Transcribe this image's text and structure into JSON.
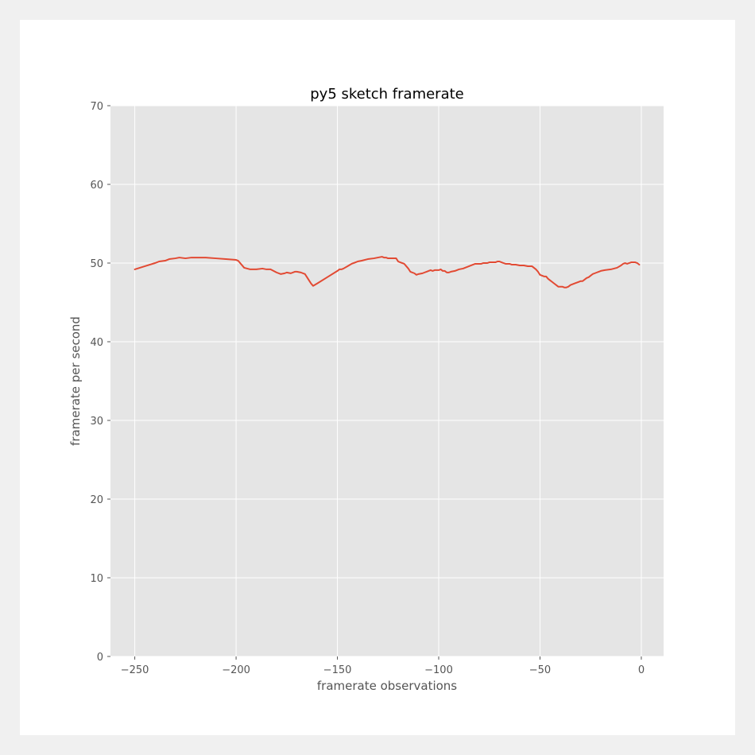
{
  "chart_data": {
    "type": "line",
    "title": "py5 sketch framerate",
    "xlabel": "framerate observations",
    "ylabel": "framerate per second",
    "xlim": [
      -262,
      11
    ],
    "ylim": [
      0,
      70
    ],
    "xticks": [
      -250,
      -200,
      -150,
      -100,
      -50,
      0
    ],
    "yticks": [
      0,
      10,
      20,
      30,
      40,
      50,
      60,
      70
    ],
    "xtick_labels": [
      "−250",
      "−200",
      "−150",
      "−100",
      "−50",
      "0"
    ],
    "ytick_labels": [
      "0",
      "10",
      "20",
      "30",
      "40",
      "50",
      "60",
      "70"
    ],
    "grid": true,
    "colors": {
      "line": "#e24a33",
      "plot_bg": "#e5e5e5",
      "grid": "#ffffff"
    },
    "series": [
      {
        "x": [
          -250,
          -245,
          -240,
          -238,
          -235,
          -233,
          -230,
          -228,
          -225,
          -222,
          -218,
          -215,
          -210,
          -205,
          -200,
          -199,
          -196,
          -193,
          -190,
          -187,
          -185,
          -183,
          -180,
          -178,
          -176,
          -175,
          -173,
          -171,
          -170,
          -168,
          -166,
          -165,
          -164,
          -163,
          -162,
          -160,
          -155,
          -150,
          -149,
          -148,
          -147,
          -145,
          -143,
          -141,
          -140,
          -138,
          -135,
          -132,
          -130,
          -128,
          -127,
          -126,
          -125,
          -123,
          -121,
          -120,
          -119,
          -117,
          -116,
          -115,
          -114,
          -112,
          -111,
          -110,
          -108,
          -107,
          -106,
          -105,
          -104,
          -103,
          -102,
          -100,
          -99,
          -98,
          -97,
          -96,
          -95,
          -94,
          -92,
          -90,
          -88,
          -86,
          -84,
          -82,
          -81,
          -80,
          -79,
          -78,
          -77,
          -76,
          -75,
          -74,
          -73,
          -72,
          -71,
          -70,
          -69,
          -68,
          -67,
          -66,
          -65,
          -64,
          -63,
          -62,
          -60,
          -58,
          -56,
          -55,
          -54,
          -53,
          -52,
          -51,
          -50,
          -48,
          -47,
          -46,
          -45,
          -44,
          -43,
          -42,
          -41,
          -40,
          -39,
          -38,
          -37,
          -36,
          -35,
          -33,
          -31,
          -30,
          -29,
          -28,
          -27,
          -26,
          -25,
          -24,
          -23,
          -22,
          -21,
          -20,
          -18,
          -15,
          -12,
          -10,
          -9,
          -8,
          -7,
          -6,
          -5,
          -4,
          -3,
          -2,
          -1
        ],
        "y": [
          49.2,
          49.6,
          50.0,
          50.2,
          50.3,
          50.5,
          50.6,
          50.7,
          50.6,
          50.7,
          50.7,
          50.7,
          50.6,
          50.5,
          50.4,
          50.3,
          49.4,
          49.2,
          49.2,
          49.3,
          49.2,
          49.2,
          48.8,
          48.6,
          48.7,
          48.8,
          48.7,
          48.9,
          48.9,
          48.8,
          48.6,
          48.2,
          47.8,
          47.4,
          47.1,
          47.4,
          48.2,
          49.0,
          49.2,
          49.2,
          49.3,
          49.6,
          49.9,
          50.1,
          50.2,
          50.3,
          50.5,
          50.6,
          50.7,
          50.8,
          50.7,
          50.7,
          50.6,
          50.6,
          50.6,
          50.2,
          50.1,
          49.9,
          49.6,
          49.3,
          48.9,
          48.7,
          48.5,
          48.6,
          48.7,
          48.8,
          48.9,
          49.0,
          49.1,
          49.0,
          49.1,
          49.1,
          49.2,
          49.0,
          49.0,
          48.8,
          48.8,
          48.9,
          49.0,
          49.2,
          49.3,
          49.5,
          49.7,
          49.9,
          49.9,
          49.9,
          49.9,
          50.0,
          50.0,
          50.0,
          50.1,
          50.1,
          50.1,
          50.1,
          50.2,
          50.2,
          50.1,
          50.0,
          49.9,
          49.9,
          49.9,
          49.8,
          49.8,
          49.8,
          49.7,
          49.7,
          49.6,
          49.6,
          49.6,
          49.4,
          49.2,
          48.9,
          48.5,
          48.3,
          48.3,
          48.0,
          47.8,
          47.6,
          47.4,
          47.2,
          47.0,
          47.0,
          47.0,
          46.9,
          46.9,
          47.0,
          47.2,
          47.4,
          47.6,
          47.7,
          47.7,
          47.9,
          48.1,
          48.2,
          48.4,
          48.6,
          48.7,
          48.8,
          48.9,
          49.0,
          49.1,
          49.2,
          49.4,
          49.7,
          49.9,
          50.0,
          49.9,
          50.0,
          50.1,
          50.1,
          50.1,
          50.0,
          49.8
        ]
      }
    ]
  }
}
